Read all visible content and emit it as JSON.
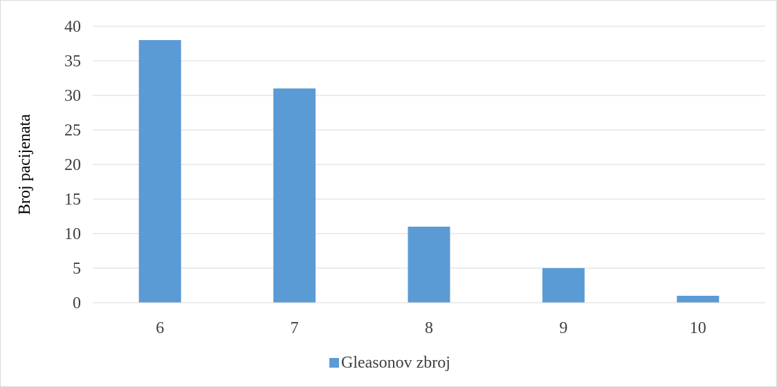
{
  "chart_data": {
    "type": "bar",
    "categories": [
      "6",
      "7",
      "8",
      "9",
      "10"
    ],
    "series": [
      {
        "name": "Gleasonov zbroj",
        "values": [
          38,
          31,
          11,
          5,
          1
        ],
        "color": "#5b9bd5"
      }
    ],
    "xlabel": "",
    "ylabel": "Broj pacijenata",
    "ylim": [
      0,
      40
    ],
    "yticks": [
      0,
      5,
      10,
      15,
      20,
      25,
      30,
      35,
      40
    ],
    "grid": true,
    "legend_position": "bottom"
  }
}
